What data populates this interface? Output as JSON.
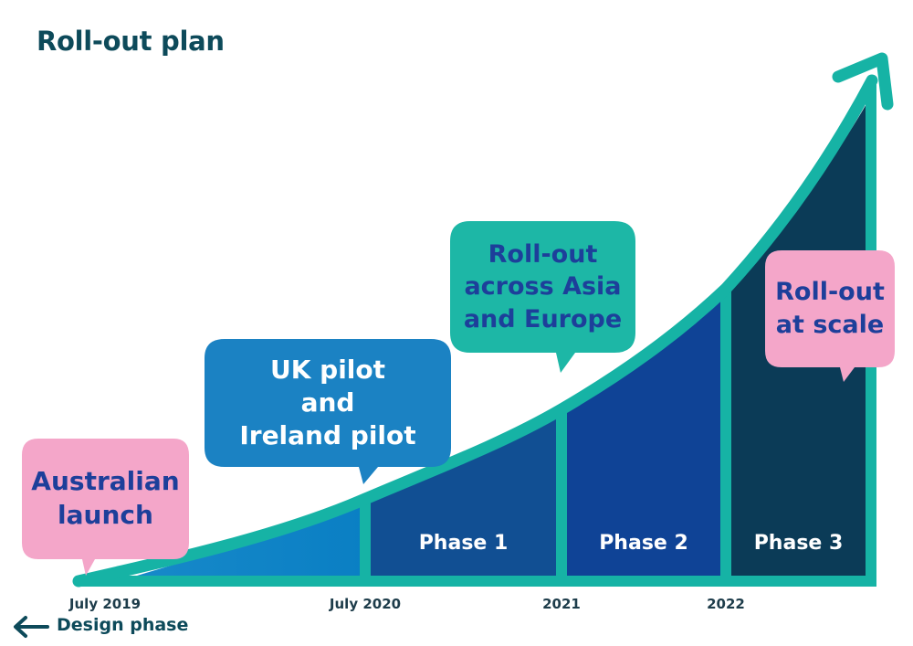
{
  "title": "Roll-out plan",
  "bubbles": [
    {
      "name": "australian-launch",
      "lines": [
        "Australian",
        "launch"
      ],
      "color": "#f4a6c9",
      "text_color": "#1d3f9a"
    },
    {
      "name": "uk-ireland-pilot",
      "lines": [
        "UK pilot",
        "and",
        "Ireland pilot"
      ],
      "color": "#1b82c3",
      "text_color": "#ffffff"
    },
    {
      "name": "asia-europe-rollout",
      "lines": [
        "Roll-out",
        "across Asia",
        "and Europe"
      ],
      "color": "#1db7a6",
      "text_color": "#1d3f9a"
    },
    {
      "name": "rollout-at-scale",
      "lines": [
        "Roll-out",
        "at scale"
      ],
      "color": "#f4a6c9",
      "text_color": "#1d3f9a"
    }
  ],
  "phases": [
    "Phase 1",
    "Phase 2",
    "Phase 3"
  ],
  "timeline_ticks": [
    "July 2019",
    "July 2020",
    "2021",
    "2022"
  ],
  "design_phase_label": "Design phase",
  "colors": {
    "curve": "#16b3a5",
    "fill_start": "#0a7fc4",
    "phase1": "#114f93",
    "phase2": "#0f4396",
    "phase3": "#0b3b57",
    "title": "#0d4a5a"
  },
  "icons": {
    "design_phase": "arrow-left-icon",
    "curve_end": "arrow-up-right-icon"
  }
}
